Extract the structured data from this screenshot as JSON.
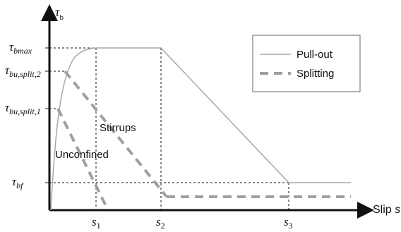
{
  "chart_data": {
    "type": "diagram",
    "axes": {
      "y_label": {
        "symbol": "τ",
        "sub": "b"
      },
      "x_label": {
        "text": "Slip ",
        "italic": "s"
      }
    },
    "y_ticks": [
      {
        "symbol": "τ",
        "sub": "bmax"
      },
      {
        "symbol": "τ",
        "sub": "bu,split,2"
      },
      {
        "symbol": "τ",
        "sub": "bu,split,1"
      },
      {
        "symbol": "τ",
        "sub": "bf"
      }
    ],
    "x_ticks": [
      {
        "symbol": "s",
        "sub": "1"
      },
      {
        "symbol": "s",
        "sub": "2"
      },
      {
        "symbol": "s",
        "sub": "3"
      }
    ],
    "annotations": {
      "stirrups": "Stirrups",
      "unconfined": "Unconfined"
    },
    "legend": {
      "placement": "top-right",
      "items": [
        {
          "label": "Pull-out",
          "style": "solid"
        },
        {
          "label": "Splitting",
          "style": "dashed"
        }
      ]
    },
    "colors": {
      "axis": "#111111",
      "pullout_line": "#a8a8a8",
      "splitting_line": "#a0a0a0",
      "guide_lines": "#111111"
    }
  }
}
